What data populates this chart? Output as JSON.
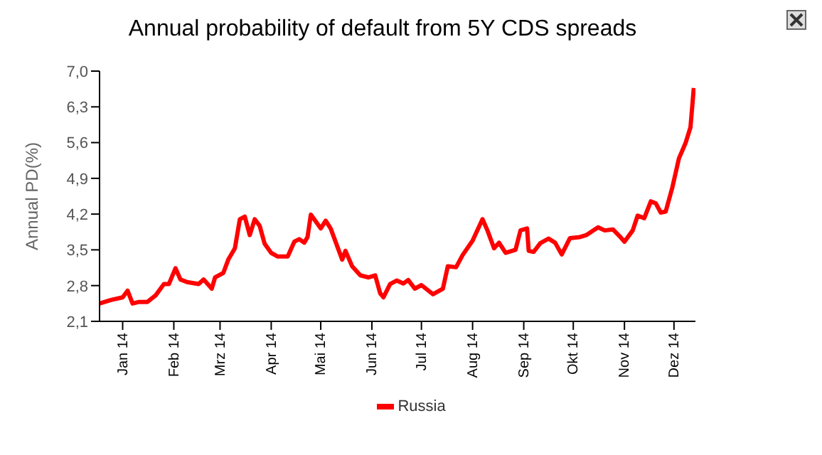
{
  "chart_data": {
    "type": "line",
    "title": "Annual probability of default from 5Y CDS spreads",
    "ylabel": "Annual PD(%)",
    "x": [
      "2014-01-01",
      "2014-01-08",
      "2014-01-15",
      "2014-01-18",
      "2014-01-21",
      "2014-01-25",
      "2014-01-30",
      "2014-02-04",
      "2014-02-09",
      "2014-02-12",
      "2014-02-16",
      "2014-02-19",
      "2014-02-23",
      "2014-03-02",
      "2014-03-05",
      "2014-03-10",
      "2014-03-12",
      "2014-03-17",
      "2014-03-20",
      "2014-03-24",
      "2014-03-27",
      "2014-03-30",
      "2014-04-02",
      "2014-04-05",
      "2014-04-08",
      "2014-04-11",
      "2014-04-15",
      "2014-04-19",
      "2014-04-25",
      "2014-04-29",
      "2014-05-02",
      "2014-05-05",
      "2014-05-07",
      "2014-05-09",
      "2014-05-13",
      "2014-05-15",
      "2014-05-18",
      "2014-05-21",
      "2014-05-25",
      "2014-05-28",
      "2014-05-30",
      "2014-06-03",
      "2014-06-08",
      "2014-06-13",
      "2014-06-17",
      "2014-06-20",
      "2014-06-22",
      "2014-06-26",
      "2014-06-30",
      "2014-07-04",
      "2014-07-07",
      "2014-07-11",
      "2014-07-15",
      "2014-07-22",
      "2014-07-28",
      "2014-07-31",
      "2014-08-05",
      "2014-08-09",
      "2014-08-15",
      "2014-08-21",
      "2014-08-24",
      "2014-08-28",
      "2014-08-31",
      "2014-09-04",
      "2014-09-10",
      "2014-09-13",
      "2014-09-17",
      "2014-09-18",
      "2014-09-21",
      "2014-09-25",
      "2014-09-30",
      "2014-10-04",
      "2014-10-08",
      "2014-10-13",
      "2014-10-19",
      "2014-10-23",
      "2014-10-30",
      "2014-11-03",
      "2014-11-08",
      "2014-11-12",
      "2014-11-15",
      "2014-11-20",
      "2014-11-23",
      "2014-11-27",
      "2014-12-01",
      "2014-12-04",
      "2014-12-07",
      "2014-12-10",
      "2014-12-14",
      "2014-12-18",
      "2014-12-22",
      "2014-12-25",
      "2014-12-27"
    ],
    "series": [
      {
        "name": "Russia",
        "color": "#ff0000",
        "values": [
          2.45,
          2.52,
          2.57,
          2.7,
          2.45,
          2.48,
          2.48,
          2.61,
          2.83,
          2.83,
          3.14,
          2.92,
          2.87,
          2.83,
          2.92,
          2.74,
          2.96,
          3.05,
          3.31,
          3.53,
          4.1,
          4.15,
          3.79,
          4.1,
          3.97,
          3.62,
          3.44,
          3.37,
          3.37,
          3.66,
          3.71,
          3.64,
          3.75,
          4.19,
          4.01,
          3.92,
          4.07,
          3.92,
          3.57,
          3.31,
          3.48,
          3.18,
          3.0,
          2.96,
          3.0,
          2.65,
          2.57,
          2.83,
          2.9,
          2.84,
          2.91,
          2.74,
          2.81,
          2.63,
          2.74,
          3.18,
          3.16,
          3.4,
          3.68,
          4.1,
          3.88,
          3.53,
          3.64,
          3.44,
          3.5,
          3.88,
          3.92,
          3.48,
          3.46,
          3.63,
          3.72,
          3.64,
          3.41,
          3.73,
          3.75,
          3.79,
          3.94,
          3.88,
          3.9,
          3.77,
          3.66,
          3.88,
          4.17,
          4.12,
          4.45,
          4.41,
          4.23,
          4.25,
          4.72,
          5.29,
          5.59,
          5.9,
          6.67
        ]
      }
    ],
    "xlim": [
      "2014-01-01",
      "2014-12-28"
    ],
    "xticks": [
      {
        "value": "2014-01-15",
        "label": "Jan 14"
      },
      {
        "value": "2014-02-15",
        "label": "Feb 14"
      },
      {
        "value": "2014-03-15",
        "label": "Mrz 14"
      },
      {
        "value": "2014-04-15",
        "label": "Apr 14"
      },
      {
        "value": "2014-05-15",
        "label": "Mai 14"
      },
      {
        "value": "2014-06-15",
        "label": "Jun 14"
      },
      {
        "value": "2014-07-15",
        "label": "Jul 14"
      },
      {
        "value": "2014-08-15",
        "label": "Aug 14"
      },
      {
        "value": "2014-09-15",
        "label": "Sep 14"
      },
      {
        "value": "2014-10-15",
        "label": "Okt 14"
      },
      {
        "value": "2014-11-15",
        "label": "Nov 14"
      },
      {
        "value": "2014-12-15",
        "label": "Dez 14"
      }
    ],
    "ylim": [
      2.1,
      7.0
    ],
    "yticks": [
      {
        "value": 2.1,
        "label": "2,1"
      },
      {
        "value": 2.8,
        "label": "2,8"
      },
      {
        "value": 3.5,
        "label": "3,5"
      },
      {
        "value": 4.2,
        "label": "4,2"
      },
      {
        "value": 4.9,
        "label": "4,9"
      },
      {
        "value": 5.6,
        "label": "5,6"
      },
      {
        "value": 6.3,
        "label": "6,3"
      },
      {
        "value": 7.0,
        "label": "7,0"
      }
    ],
    "grid": false,
    "legend": "bottom",
    "marker": "none",
    "line_style": "solid"
  }
}
